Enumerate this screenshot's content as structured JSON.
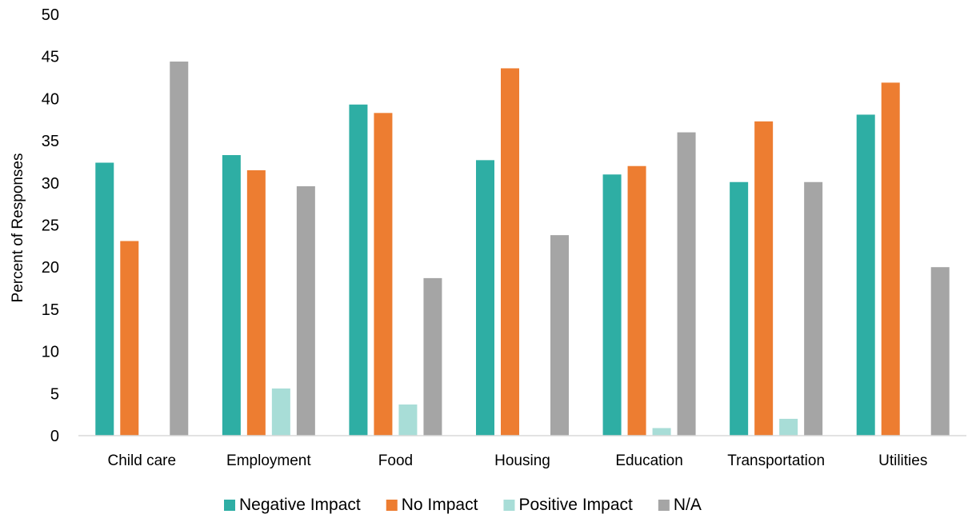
{
  "chart_data": {
    "type": "bar",
    "title": "",
    "xlabel": "",
    "ylabel": "Percent of Responses",
    "ylim": [
      0,
      50
    ],
    "yticks": [
      0,
      5,
      10,
      15,
      20,
      25,
      30,
      35,
      40,
      45,
      50
    ],
    "grid": false,
    "legend_position": "bottom",
    "categories": [
      "Child care",
      "Employment",
      "Food",
      "Housing",
      "Education",
      "Transportation",
      "Utilities"
    ],
    "series": [
      {
        "name": "Negative Impact",
        "color": "#2EAEA4",
        "values": [
          32.4,
          33.3,
          39.3,
          32.7,
          31.0,
          30.1,
          38.1
        ]
      },
      {
        "name": "No Impact",
        "color": "#ED7D31",
        "values": [
          23.1,
          31.5,
          38.3,
          43.6,
          32.0,
          37.3,
          41.9
        ]
      },
      {
        "name": "Positive Impact",
        "color": "#A8DDD7",
        "values": [
          0,
          5.6,
          3.7,
          0,
          0.9,
          2.0,
          0
        ]
      },
      {
        "name": "N/A",
        "color": "#A5A5A5",
        "values": [
          44.4,
          29.6,
          18.7,
          23.8,
          36.0,
          30.1,
          20.0
        ]
      }
    ]
  }
}
